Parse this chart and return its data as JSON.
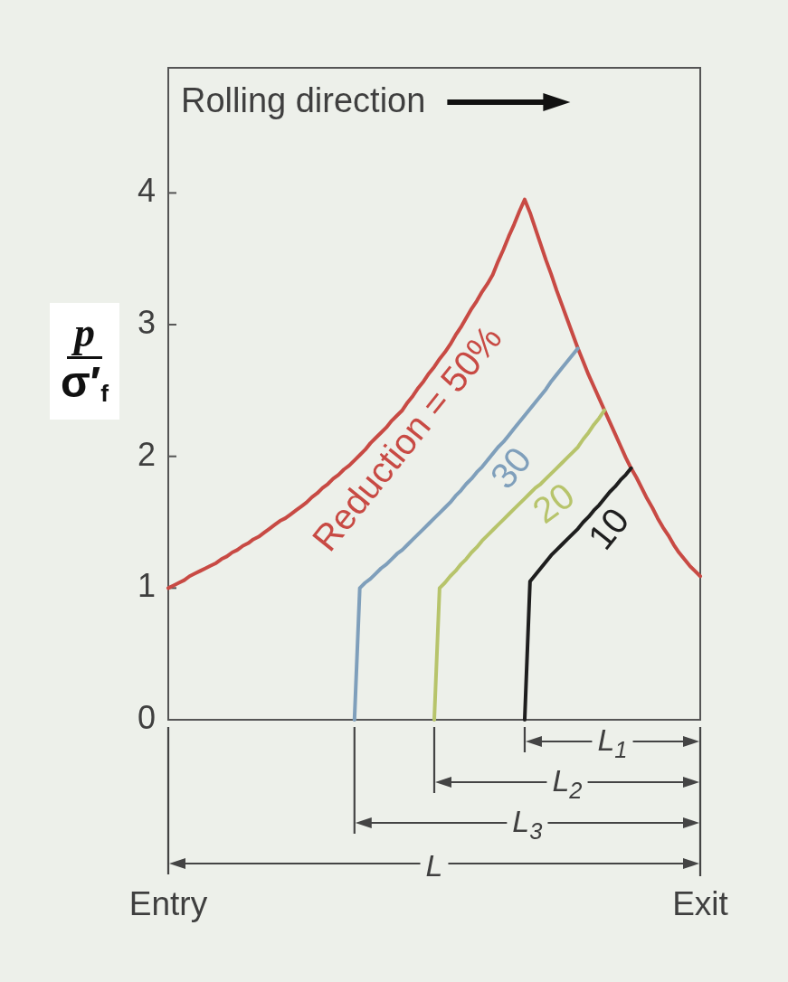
{
  "chart_data": {
    "type": "line",
    "ylabel": "p\nσ′$_{f}$",
    "annotations": [
      "Rolling direction",
      "L$_{1}$",
      "L$_{2}$",
      "L$_{3}$",
      "L"
    ],
    "categories": [
      "Entry",
      null,
      null,
      null,
      null,
      null,
      null,
      null,
      null,
      null,
      null,
      null,
      null,
      null,
      null,
      null,
      null,
      null,
      null,
      null,
      null,
      null,
      null,
      null,
      null,
      null,
      null,
      null,
      null,
      null,
      null,
      null,
      null,
      null,
      null,
      null,
      null,
      null,
      null,
      null,
      null,
      null,
      null,
      null,
      null,
      null,
      null,
      null,
      null,
      null,
      null,
      null,
      null,
      null,
      null,
      null,
      null,
      null,
      null,
      null,
      null,
      null,
      null,
      null,
      null,
      null,
      null,
      null,
      null,
      null,
      null,
      null,
      null,
      null,
      null,
      null,
      null,
      null,
      null,
      null,
      null,
      null,
      null,
      null,
      null,
      null,
      null,
      null,
      null,
      null,
      null,
      null,
      null,
      null,
      null,
      null,
      null,
      null,
      null,
      null,
      "Exit"
    ],
    "ylim": [
      0,
      4.95
    ],
    "yticks": [
      0,
      1,
      2,
      3,
      4
    ],
    "grid": false,
    "legend": false,
    "marker": "none",
    "line_style": "solid",
    "series": [
      {
        "name": "10",
        "color": "#1e1e1e",
        "values": [
          null,
          null,
          null,
          null,
          null,
          null,
          null,
          null,
          null,
          null,
          null,
          null,
          null,
          null,
          null,
          null,
          null,
          null,
          null,
          null,
          null,
          null,
          null,
          null,
          null,
          null,
          null,
          null,
          null,
          null,
          null,
          null,
          null,
          null,
          null,
          null,
          null,
          null,
          null,
          null,
          null,
          null,
          null,
          null,
          null,
          null,
          null,
          null,
          null,
          null,
          null,
          null,
          null,
          null,
          null,
          null,
          null,
          null,
          null,
          null,
          null,
          null,
          null,
          null,
          null,
          null,
          null,
          0,
          1.05,
          1.1,
          1.15,
          1.2,
          1.25,
          1.29,
          1.33,
          1.37,
          1.41,
          1.45,
          1.5,
          1.54,
          1.59,
          1.63,
          1.68,
          1.73,
          1.77,
          1.82,
          1.86,
          1.91,
          null,
          null,
          null,
          null,
          null,
          null,
          null,
          null,
          null,
          null,
          null,
          null,
          null
        ]
      },
      {
        "name": "20",
        "color": "#b7c46b",
        "values": [
          null,
          null,
          null,
          null,
          null,
          null,
          null,
          null,
          null,
          null,
          null,
          null,
          null,
          null,
          null,
          null,
          null,
          null,
          null,
          null,
          null,
          null,
          null,
          null,
          null,
          null,
          null,
          null,
          null,
          null,
          null,
          null,
          null,
          null,
          null,
          null,
          null,
          null,
          null,
          null,
          null,
          null,
          null,
          null,
          null,
          null,
          null,
          null,
          null,
          null,
          0,
          1.0,
          1.04,
          1.09,
          1.13,
          1.18,
          1.22,
          1.27,
          1.31,
          1.36,
          1.4,
          1.44,
          1.48,
          1.52,
          1.56,
          1.6,
          1.64,
          1.68,
          1.72,
          1.76,
          1.79,
          1.83,
          1.87,
          1.91,
          1.95,
          1.99,
          2.03,
          2.07,
          2.13,
          2.18,
          2.24,
          2.29,
          2.35,
          null,
          null,
          null,
          null,
          null,
          null,
          null,
          null,
          null,
          null,
          null,
          null,
          null,
          null,
          null,
          null,
          null,
          null
        ]
      },
      {
        "name": "30",
        "color": "#7f9fbb",
        "values": [
          null,
          null,
          null,
          null,
          null,
          null,
          null,
          null,
          null,
          null,
          null,
          null,
          null,
          null,
          null,
          null,
          null,
          null,
          null,
          null,
          null,
          null,
          null,
          null,
          null,
          null,
          null,
          null,
          null,
          null,
          null,
          null,
          null,
          null,
          null,
          0,
          1.0,
          1.04,
          1.07,
          1.11,
          1.15,
          1.18,
          1.22,
          1.26,
          1.29,
          1.33,
          1.37,
          1.41,
          1.45,
          1.49,
          1.53,
          1.57,
          1.61,
          1.65,
          1.7,
          1.74,
          1.79,
          1.83,
          1.88,
          1.92,
          1.97,
          2.02,
          2.07,
          2.11,
          2.16,
          2.21,
          2.26,
          2.31,
          2.36,
          2.41,
          2.46,
          2.51,
          2.57,
          2.62,
          2.67,
          2.72,
          2.77,
          2.82,
          null,
          null,
          null,
          null,
          null,
          null,
          null,
          null,
          null,
          null,
          null,
          null,
          null,
          null,
          null,
          null,
          null,
          null,
          null,
          null,
          null,
          null,
          null
        ]
      },
      {
        "name": "Reduction = 50%",
        "color": "#c84a44",
        "values": [
          1.0,
          1.02,
          1.04,
          1.06,
          1.09,
          1.11,
          1.13,
          1.15,
          1.17,
          1.19,
          1.22,
          1.24,
          1.27,
          1.29,
          1.32,
          1.34,
          1.37,
          1.39,
          1.42,
          1.45,
          1.48,
          1.51,
          1.53,
          1.56,
          1.59,
          1.62,
          1.65,
          1.69,
          1.72,
          1.76,
          1.79,
          1.83,
          1.86,
          1.9,
          1.93,
          1.97,
          2.01,
          2.05,
          2.1,
          2.14,
          2.18,
          2.22,
          2.27,
          2.31,
          2.35,
          2.41,
          2.46,
          2.52,
          2.57,
          2.63,
          2.68,
          2.74,
          2.79,
          2.85,
          2.92,
          2.98,
          3.05,
          3.12,
          3.18,
          3.25,
          3.31,
          3.38,
          3.48,
          3.57,
          3.67,
          3.76,
          3.86,
          3.95,
          3.85,
          3.73,
          3.61,
          3.49,
          3.38,
          3.26,
          3.15,
          3.04,
          2.93,
          2.82,
          2.72,
          2.62,
          2.53,
          2.44,
          2.35,
          2.26,
          2.17,
          2.08,
          1.99,
          1.91,
          1.84,
          1.76,
          1.68,
          1.61,
          1.53,
          1.46,
          1.4,
          1.33,
          1.27,
          1.22,
          1.17,
          1.13,
          1.09
        ]
      }
    ]
  }
}
